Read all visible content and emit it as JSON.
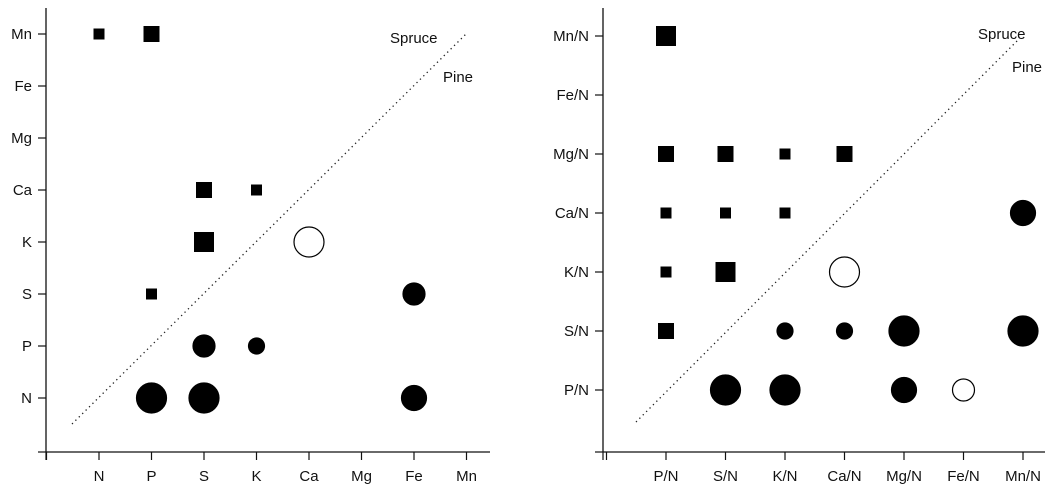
{
  "chart_data": [
    {
      "type": "scatter",
      "title": "",
      "xlabel": "",
      "ylabel": "",
      "categories_x": [
        "N",
        "P",
        "S",
        "K",
        "Ca",
        "Mg",
        "Fe",
        "Mn"
      ],
      "categories_y": [
        "N",
        "P",
        "S",
        "K",
        "Ca",
        "Mg",
        "Fe",
        "Mn"
      ],
      "grid": false,
      "diagonal_labels": {
        "upper": "Spruce",
        "lower": "Pine"
      },
      "points": [
        {
          "x": "N",
          "y": "Mn",
          "shape": "square",
          "size": "small",
          "filled": true
        },
        {
          "x": "P",
          "y": "Mn",
          "shape": "square",
          "size": "medium",
          "filled": true
        },
        {
          "x": "S",
          "y": "Ca",
          "shape": "square",
          "size": "medium",
          "filled": true
        },
        {
          "x": "K",
          "y": "Ca",
          "shape": "square",
          "size": "small",
          "filled": true
        },
        {
          "x": "S",
          "y": "K",
          "shape": "square",
          "size": "large",
          "filled": true
        },
        {
          "x": "P",
          "y": "S",
          "shape": "square",
          "size": "small",
          "filled": true
        },
        {
          "x": "Ca",
          "y": "K",
          "shape": "circle",
          "size": "xlarge",
          "filled": false
        },
        {
          "x": "Fe",
          "y": "S",
          "shape": "circle",
          "size": "medium",
          "filled": true
        },
        {
          "x": "S",
          "y": "P",
          "shape": "circle",
          "size": "medium",
          "filled": true
        },
        {
          "x": "K",
          "y": "P",
          "shape": "circle",
          "size": "small",
          "filled": true
        },
        {
          "x": "P",
          "y": "N",
          "shape": "circle",
          "size": "xlarge",
          "filled": true
        },
        {
          "x": "S",
          "y": "N",
          "shape": "circle",
          "size": "xlarge",
          "filled": true
        },
        {
          "x": "Fe",
          "y": "N",
          "shape": "circle",
          "size": "large",
          "filled": true
        }
      ]
    },
    {
      "type": "scatter",
      "title": "",
      "xlabel": "",
      "ylabel": "",
      "categories_x": [
        "P/N",
        "S/N",
        "K/N",
        "Ca/N",
        "Mg/N",
        "Fe/N",
        "Mn/N"
      ],
      "categories_y": [
        "P/N",
        "S/N",
        "K/N",
        "Ca/N",
        "Mg/N",
        "Fe/N",
        "Mn/N"
      ],
      "grid": false,
      "diagonal_labels": {
        "upper": "Spruce",
        "lower": "Pine"
      },
      "points": [
        {
          "x": "P/N",
          "y": "Mn/N",
          "shape": "square",
          "size": "large",
          "filled": true
        },
        {
          "x": "P/N",
          "y": "Mg/N",
          "shape": "square",
          "size": "medium",
          "filled": true
        },
        {
          "x": "S/N",
          "y": "Mg/N",
          "shape": "square",
          "size": "medium",
          "filled": true
        },
        {
          "x": "K/N",
          "y": "Mg/N",
          "shape": "square",
          "size": "small",
          "filled": true
        },
        {
          "x": "Ca/N",
          "y": "Mg/N",
          "shape": "square",
          "size": "medium",
          "filled": true
        },
        {
          "x": "P/N",
          "y": "Ca/N",
          "shape": "square",
          "size": "small",
          "filled": true
        },
        {
          "x": "S/N",
          "y": "Ca/N",
          "shape": "square",
          "size": "small",
          "filled": true
        },
        {
          "x": "K/N",
          "y": "Ca/N",
          "shape": "square",
          "size": "small",
          "filled": true
        },
        {
          "x": "Mn/N",
          "y": "Ca/N",
          "shape": "circle",
          "size": "large",
          "filled": true
        },
        {
          "x": "P/N",
          "y": "K/N",
          "shape": "square",
          "size": "small",
          "filled": true
        },
        {
          "x": "S/N",
          "y": "K/N",
          "shape": "square",
          "size": "large",
          "filled": true
        },
        {
          "x": "Ca/N",
          "y": "K/N",
          "shape": "circle",
          "size": "xlarge",
          "filled": false
        },
        {
          "x": "P/N",
          "y": "S/N",
          "shape": "square",
          "size": "medium",
          "filled": true
        },
        {
          "x": "K/N",
          "y": "S/N",
          "shape": "circle",
          "size": "small",
          "filled": true
        },
        {
          "x": "Ca/N",
          "y": "S/N",
          "shape": "circle",
          "size": "small",
          "filled": true
        },
        {
          "x": "Mg/N",
          "y": "S/N",
          "shape": "circle",
          "size": "xlarge",
          "filled": true
        },
        {
          "x": "Mn/N",
          "y": "S/N",
          "shape": "circle",
          "size": "xlarge",
          "filled": true
        },
        {
          "x": "S/N",
          "y": "P/N",
          "shape": "circle",
          "size": "xlarge",
          "filled": true
        },
        {
          "x": "K/N",
          "y": "P/N",
          "shape": "circle",
          "size": "xlarge",
          "filled": true
        },
        {
          "x": "Mg/N",
          "y": "P/N",
          "shape": "circle",
          "size": "large",
          "filled": true
        },
        {
          "x": "Fe/N",
          "y": "P/N",
          "shape": "circle",
          "size": "medium",
          "filled": false
        }
      ]
    }
  ]
}
